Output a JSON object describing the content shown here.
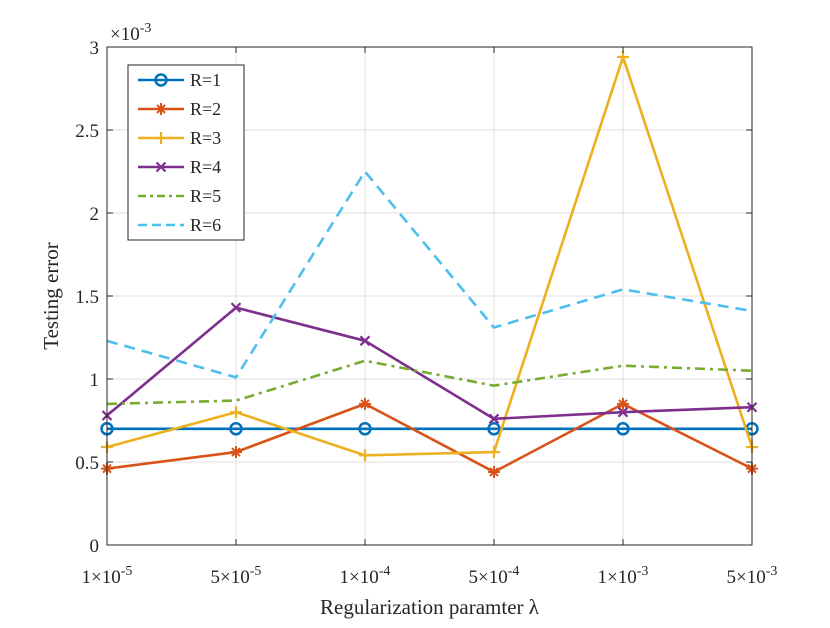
{
  "chart_data": {
    "type": "line",
    "title": "",
    "xlabel": "Regularization paramter λ",
    "ylabel": "Testing error",
    "y_scale_label": "×10",
    "y_scale_exponent": "-3",
    "ylim": [
      0,
      3
    ],
    "yticks": [
      0,
      0.5,
      1,
      1.5,
      2,
      2.5,
      3
    ],
    "ytick_labels": [
      "0",
      "0.5",
      "1",
      "1.5",
      "2",
      "2.5",
      "3"
    ],
    "x_tick_mantissas": [
      "1×10",
      "5×10",
      "1×10",
      "5×10",
      "1×10",
      "5×10"
    ],
    "x_tick_exponents": [
      "-5",
      "-5",
      "-4",
      "-4",
      "-3",
      "-3"
    ],
    "categories": [
      "1e-5",
      "5e-5",
      "1e-4",
      "5e-4",
      "1e-3",
      "5e-3"
    ],
    "grid": true,
    "legend_position": "top-left",
    "series": [
      {
        "name": "R=1",
        "color": "#0072BD",
        "dash": "solid",
        "marker": "circle",
        "values": [
          0.7,
          0.7,
          0.7,
          0.7,
          0.7,
          0.7
        ]
      },
      {
        "name": "R=2",
        "color": "#D95319",
        "dash": "solid",
        "marker": "asterisk",
        "values": [
          0.46,
          0.56,
          0.85,
          0.44,
          0.85,
          0.46
        ]
      },
      {
        "name": "R=3",
        "color": "#EDB120",
        "dash": "solid",
        "marker": "plus",
        "values": [
          0.59,
          0.8,
          0.54,
          0.56,
          2.94,
          0.59
        ]
      },
      {
        "name": "R=4",
        "color": "#7E2F8E",
        "dash": "solid",
        "marker": "x",
        "values": [
          0.78,
          1.43,
          1.23,
          0.76,
          0.8,
          0.83
        ]
      },
      {
        "name": "R=5",
        "color": "#77AC30",
        "dash": "dashdot",
        "marker": "none",
        "values": [
          0.85,
          0.87,
          1.11,
          0.96,
          1.08,
          1.05
        ]
      },
      {
        "name": "R=6",
        "color": "#4DBEEE",
        "dash": "dashed",
        "marker": "none",
        "values": [
          1.23,
          1.01,
          2.25,
          1.31,
          1.54,
          1.41
        ]
      }
    ]
  }
}
